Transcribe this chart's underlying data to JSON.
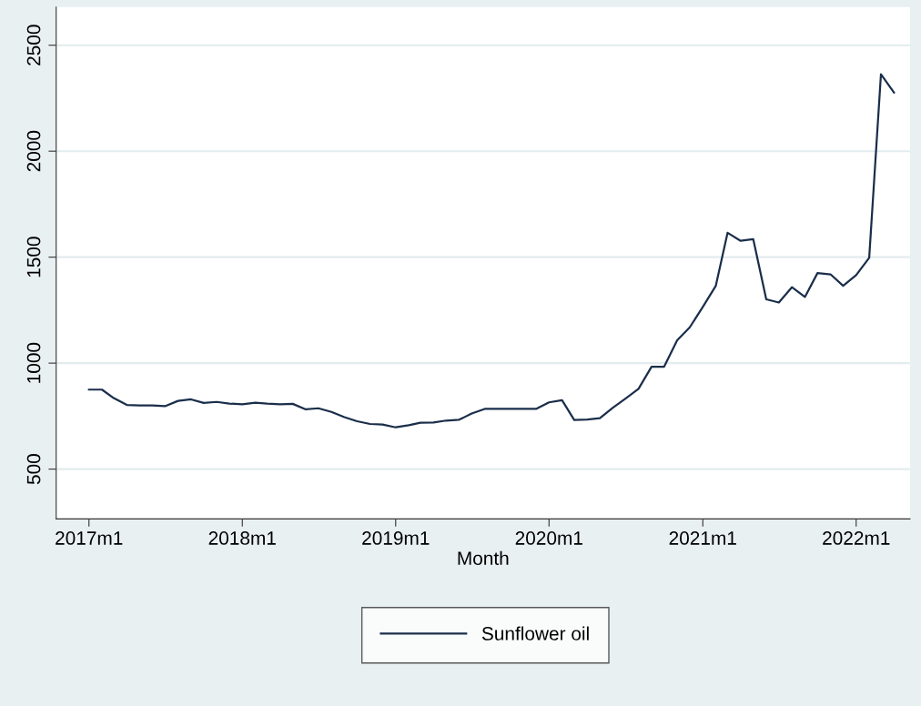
{
  "chart_data": {
    "type": "line",
    "xlabel": "Month",
    "x": [
      "2017-01",
      "2017-02",
      "2017-03",
      "2017-04",
      "2017-05",
      "2017-06",
      "2017-07",
      "2017-08",
      "2017-09",
      "2017-10",
      "2017-11",
      "2017-12",
      "2018-01",
      "2018-02",
      "2018-03",
      "2018-04",
      "2018-05",
      "2018-06",
      "2018-07",
      "2018-08",
      "2018-09",
      "2018-10",
      "2018-11",
      "2018-12",
      "2019-01",
      "2019-02",
      "2019-03",
      "2019-04",
      "2019-05",
      "2019-06",
      "2019-07",
      "2019-08",
      "2019-09",
      "2019-10",
      "2019-11",
      "2019-12",
      "2020-01",
      "2020-02",
      "2020-03",
      "2020-04",
      "2020-05",
      "2020-06",
      "2020-07",
      "2020-08",
      "2020-09",
      "2020-10",
      "2020-11",
      "2020-12",
      "2021-01",
      "2021-02",
      "2021-03",
      "2021-04",
      "2021-05",
      "2021-06",
      "2021-07",
      "2021-08",
      "2021-09",
      "2021-10",
      "2021-11",
      "2021-12",
      "2022-01",
      "2022-02",
      "2022-03",
      "2022-04"
    ],
    "series": [
      {
        "name": "Sunflower oil",
        "color": "#1a2e4a",
        "values": [
          875,
          875,
          835,
          803,
          800,
          800,
          797,
          822,
          829,
          812,
          817,
          809,
          806,
          813,
          809,
          806,
          808,
          782,
          787,
          770,
          745,
          726,
          713,
          710,
          697,
          707,
          719,
          720,
          729,
          733,
          762,
          784,
          784,
          784,
          784,
          784,
          815,
          825,
          732,
          734,
          740,
          790,
          833,
          879,
          983,
          983,
          1108,
          1169,
          1265,
          1365,
          1615,
          1577,
          1585,
          1301,
          1286,
          1358,
          1312,
          1425,
          1419,
          1365,
          1415,
          1497,
          2363,
          2277
        ]
      }
    ],
    "xlim": [
      "2016-10-15",
      "2022-05-09"
    ],
    "xticks": [
      {
        "value": "2017-01",
        "label": "2017m1"
      },
      {
        "value": "2018-01",
        "label": "2018m1"
      },
      {
        "value": "2019-01",
        "label": "2019m1"
      },
      {
        "value": "2020-01",
        "label": "2020m1"
      },
      {
        "value": "2021-01",
        "label": "2021m1"
      },
      {
        "value": "2022-01",
        "label": "2022m1"
      }
    ],
    "ylim": [
      265,
      2680
    ],
    "yticks": [
      500,
      1000,
      1500,
      2000,
      2500
    ],
    "grid": "y",
    "legend": "bottom",
    "marker": "none",
    "line_style": "solid"
  }
}
